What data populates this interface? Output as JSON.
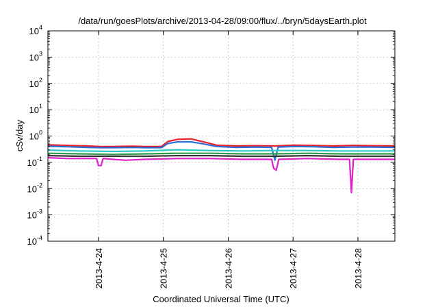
{
  "chart_data": {
    "type": "line",
    "title": "/data/run/goesPlots/archive/2013-04-28/09:00/flux/../bryn/5daysEarth.plot",
    "xlabel": "Coordinated Universal Time (UTC)",
    "ylabel": "cSv/day",
    "yscale": "log",
    "ylim": [
      0.0001,
      10000
    ],
    "yticks": [
      {
        "value": 0.0001,
        "base": "10",
        "exp": "-4"
      },
      {
        "value": 0.001,
        "base": "10",
        "exp": "-3"
      },
      {
        "value": 0.01,
        "base": "10",
        "exp": "-2"
      },
      {
        "value": 0.1,
        "base": "10",
        "exp": "-1"
      },
      {
        "value": 1,
        "base": "10",
        "exp": "0"
      },
      {
        "value": 10,
        "base": "10",
        "exp": "1"
      },
      {
        "value": 100,
        "base": "10",
        "exp": "2"
      },
      {
        "value": 1000,
        "base": "10",
        "exp": "3"
      },
      {
        "value": 10000,
        "base": "10",
        "exp": "4"
      }
    ],
    "xlim": [
      0,
      5.35
    ],
    "xticks": [
      {
        "value": 0.78,
        "label": "2013-4-24"
      },
      {
        "value": 1.78,
        "label": "2013-4-25"
      },
      {
        "value": 2.78,
        "label": "2013-4-26"
      },
      {
        "value": 3.78,
        "label": "2013-4-27"
      },
      {
        "value": 4.78,
        "label": "2013-4-28"
      }
    ],
    "grid": true,
    "series": [
      {
        "color": "#e8202a",
        "points": [
          [
            0,
            0.46
          ],
          [
            0.3,
            0.44
          ],
          [
            0.6,
            0.42
          ],
          [
            0.8,
            0.4
          ],
          [
            1.0,
            0.4
          ],
          [
            1.3,
            0.41
          ],
          [
            1.5,
            0.4
          ],
          [
            1.75,
            0.4
          ],
          [
            1.85,
            0.62
          ],
          [
            2.0,
            0.75
          ],
          [
            2.2,
            0.78
          ],
          [
            2.4,
            0.6
          ],
          [
            2.6,
            0.45
          ],
          [
            2.9,
            0.42
          ],
          [
            3.2,
            0.43
          ],
          [
            3.5,
            0.42
          ],
          [
            3.8,
            0.45
          ],
          [
            4.1,
            0.44
          ],
          [
            4.4,
            0.42
          ],
          [
            4.7,
            0.44
          ],
          [
            5.0,
            0.43
          ],
          [
            5.35,
            0.42
          ]
        ]
      },
      {
        "color": "#2a6fd8",
        "points": [
          [
            0,
            0.41
          ],
          [
            0.3,
            0.39
          ],
          [
            0.6,
            0.37
          ],
          [
            0.8,
            0.36
          ],
          [
            1.0,
            0.36
          ],
          [
            1.3,
            0.37
          ],
          [
            1.5,
            0.36
          ],
          [
            1.75,
            0.36
          ],
          [
            1.85,
            0.52
          ],
          [
            2.0,
            0.6
          ],
          [
            2.2,
            0.6
          ],
          [
            2.4,
            0.5
          ],
          [
            2.6,
            0.4
          ],
          [
            2.9,
            0.37
          ],
          [
            3.2,
            0.38
          ],
          [
            3.45,
            0.37
          ],
          [
            3.5,
            0.12
          ],
          [
            3.55,
            0.38
          ],
          [
            3.8,
            0.4
          ],
          [
            4.1,
            0.39
          ],
          [
            4.4,
            0.37
          ],
          [
            4.7,
            0.38
          ],
          [
            5.0,
            0.38
          ],
          [
            5.35,
            0.37
          ]
        ]
      },
      {
        "color": "#2ac8c8",
        "points": [
          [
            0,
            0.29
          ],
          [
            0.5,
            0.27
          ],
          [
            1.0,
            0.26
          ],
          [
            1.5,
            0.27
          ],
          [
            2.0,
            0.3
          ],
          [
            2.5,
            0.28
          ],
          [
            3.0,
            0.27
          ],
          [
            3.5,
            0.28
          ],
          [
            4.0,
            0.28
          ],
          [
            4.5,
            0.27
          ],
          [
            5.0,
            0.27
          ],
          [
            5.35,
            0.27
          ]
        ]
      },
      {
        "color": "#2e9e4a",
        "points": [
          [
            0,
            0.22
          ],
          [
            0.5,
            0.21
          ],
          [
            1.0,
            0.2
          ],
          [
            1.5,
            0.21
          ],
          [
            2.0,
            0.22
          ],
          [
            2.5,
            0.22
          ],
          [
            3.0,
            0.21
          ],
          [
            3.5,
            0.21
          ],
          [
            4.0,
            0.22
          ],
          [
            4.5,
            0.21
          ],
          [
            5.0,
            0.21
          ],
          [
            5.35,
            0.21
          ]
        ]
      },
      {
        "color": "#333333",
        "points": [
          [
            0,
            0.18
          ],
          [
            0.5,
            0.17
          ],
          [
            1.0,
            0.17
          ],
          [
            1.5,
            0.17
          ],
          [
            2.0,
            0.18
          ],
          [
            2.5,
            0.18
          ],
          [
            3.0,
            0.17
          ],
          [
            3.5,
            0.17
          ],
          [
            4.0,
            0.18
          ],
          [
            4.5,
            0.17
          ],
          [
            5.0,
            0.17
          ],
          [
            5.35,
            0.17
          ]
        ]
      },
      {
        "color": "#e020c8",
        "points": [
          [
            0,
            0.15
          ],
          [
            0.3,
            0.14
          ],
          [
            0.75,
            0.14
          ],
          [
            0.78,
            0.075
          ],
          [
            0.82,
            0.075
          ],
          [
            0.85,
            0.14
          ],
          [
            1.0,
            0.13
          ],
          [
            1.2,
            0.12
          ],
          [
            1.5,
            0.13
          ],
          [
            2.0,
            0.14
          ],
          [
            2.5,
            0.14
          ],
          [
            3.0,
            0.13
          ],
          [
            3.45,
            0.13
          ],
          [
            3.48,
            0.06
          ],
          [
            3.52,
            0.05
          ],
          [
            3.56,
            0.13
          ],
          [
            4.0,
            0.14
          ],
          [
            4.5,
            0.13
          ],
          [
            4.65,
            0.13
          ],
          [
            4.68,
            0.007
          ],
          [
            4.71,
            0.13
          ],
          [
            5.0,
            0.13
          ],
          [
            5.35,
            0.13
          ]
        ]
      }
    ]
  }
}
